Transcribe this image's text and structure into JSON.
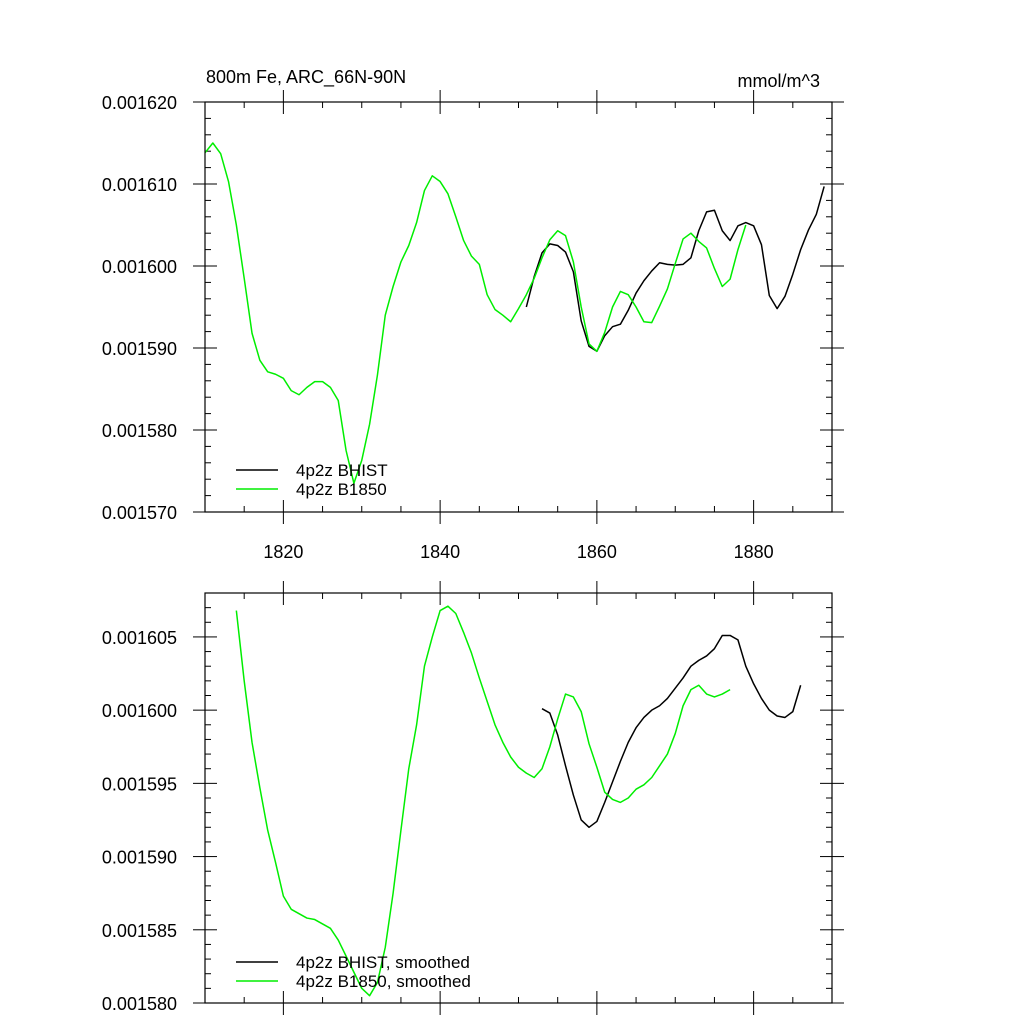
{
  "chart_data": [
    {
      "type": "line",
      "title": "800m Fe, ARC_66N-90N",
      "units": "mmol/m^3",
      "xlim": [
        1810,
        1890
      ],
      "ylim": [
        0.00157,
        0.00162
      ],
      "xticks": [
        {
          "value": 1820,
          "label": "1820"
        },
        {
          "value": 1840,
          "label": "1840"
        },
        {
          "value": 1860,
          "label": "1860"
        },
        {
          "value": 1880,
          "label": "1880"
        }
      ],
      "yticks": [
        {
          "value": 0.00157,
          "label": "0.001570"
        },
        {
          "value": 0.00158,
          "label": "0.001580"
        },
        {
          "value": 0.00159,
          "label": "0.001590"
        },
        {
          "value": 0.0016,
          "label": "0.001600"
        },
        {
          "value": 0.00161,
          "label": "0.001610"
        },
        {
          "value": 0.00162,
          "label": "0.001620"
        }
      ],
      "legend_position": "bottom-left",
      "series": [
        {
          "name": "4p2z BHIST",
          "color": "#000000",
          "x": [
            1851,
            1852,
            1853,
            1854,
            1855,
            1856,
            1857,
            1858,
            1859,
            1860,
            1861,
            1862,
            1863,
            1864,
            1865,
            1866,
            1867,
            1868,
            1869,
            1870,
            1871,
            1872,
            1873,
            1874,
            1875,
            1876,
            1877,
            1878,
            1879,
            1880,
            1881,
            1882,
            1883,
            1884,
            1885,
            1886,
            1887,
            1888,
            1889
          ],
          "y": [
            0.001595,
            0.0015987,
            0.0016016,
            0.0016027,
            0.0016025,
            0.0016017,
            0.0015993,
            0.0015933,
            0.0015902,
            0.0015896,
            0.0015915,
            0.0015926,
            0.0015929,
            0.0015946,
            0.0015967,
            0.0015982,
            0.0015994,
            0.0016004,
            0.0016002,
            0.0016001,
            0.0016002,
            0.001601,
            0.0016043,
            0.0016066,
            0.0016068,
            0.0016043,
            0.0016031,
            0.0016049,
            0.0016053,
            0.0016049,
            0.0016026,
            0.0015964,
            0.0015948,
            0.0015963,
            0.001599,
            0.001602,
            0.0016044,
            0.0016063,
            0.0016097
          ]
        },
        {
          "name": "4p2z B1850",
          "color": "#00ee00",
          "x": [
            1810,
            1811,
            1812,
            1813,
            1814,
            1815,
            1816,
            1817,
            1818,
            1819,
            1820,
            1821,
            1822,
            1823,
            1824,
            1825,
            1826,
            1827,
            1828,
            1829,
            1830,
            1831,
            1832,
            1833,
            1834,
            1835,
            1836,
            1837,
            1838,
            1839,
            1840,
            1841,
            1842,
            1843,
            1844,
            1845,
            1846,
            1847,
            1848,
            1849,
            1850,
            1851,
            1852,
            1853,
            1854,
            1855,
            1856,
            1857,
            1858,
            1859,
            1860,
            1861,
            1862,
            1863,
            1864,
            1865,
            1866,
            1867,
            1868,
            1869,
            1870,
            1871,
            1872,
            1873,
            1874,
            1875,
            1876,
            1877,
            1878,
            1879
          ],
          "y": [
            0.0016138,
            0.001615,
            0.0016137,
            0.0016103,
            0.001605,
            0.0015985,
            0.0015918,
            0.0015885,
            0.0015871,
            0.0015868,
            0.0015863,
            0.0015848,
            0.0015843,
            0.0015852,
            0.0015859,
            0.0015859,
            0.0015852,
            0.0015836,
            0.0015775,
            0.0015735,
            0.0015763,
            0.0015807,
            0.0015867,
            0.001594,
            0.0015975,
            0.0016005,
            0.0016025,
            0.0016053,
            0.0016092,
            0.001611,
            0.0016103,
            0.0016088,
            0.001606,
            0.0016031,
            0.0016012,
            0.0016002,
            0.0015965,
            0.0015947,
            0.001594,
            0.0015932,
            0.0015948,
            0.0015965,
            0.0015985,
            0.001601,
            0.0016032,
            0.0016043,
            0.0016037,
            0.0016005,
            0.001595,
            0.0015905,
            0.0015896,
            0.0015919,
            0.001595,
            0.0015969,
            0.0015965,
            0.001595,
            0.0015932,
            0.0015931,
            0.0015951,
            0.0015972,
            0.0016003,
            0.0016033,
            0.001604,
            0.001603,
            0.0016022,
            0.0015997,
            0.0015975,
            0.0015984,
            0.001602,
            0.001605
          ]
        }
      ]
    },
    {
      "type": "line",
      "xlim": [
        1810,
        1890
      ],
      "ylim": [
        0.00158,
        0.001608
      ],
      "xticks": [
        {
          "value": 1820,
          "label": ""
        },
        {
          "value": 1840,
          "label": ""
        },
        {
          "value": 1860,
          "label": ""
        },
        {
          "value": 1880,
          "label": ""
        }
      ],
      "yticks": [
        {
          "value": 0.00158,
          "label": "0.001580"
        },
        {
          "value": 0.001585,
          "label": "0.001585"
        },
        {
          "value": 0.00159,
          "label": "0.001590"
        },
        {
          "value": 0.001595,
          "label": "0.001595"
        },
        {
          "value": 0.0016,
          "label": "0.001600"
        },
        {
          "value": 0.001605,
          "label": "0.001605"
        }
      ],
      "legend_position": "bottom-left",
      "series": [
        {
          "name": "4p2z BHIST, smoothed",
          "color": "#000000",
          "x": [
            1853,
            1854,
            1855,
            1856,
            1857,
            1858,
            1859,
            1860,
            1861,
            1862,
            1863,
            1864,
            1865,
            1866,
            1867,
            1868,
            1869,
            1870,
            1871,
            1872,
            1873,
            1874,
            1875,
            1876,
            1877,
            1878,
            1879,
            1880,
            1881,
            1882,
            1883,
            1884,
            1885,
            1886
          ],
          "y": [
            0.0016001,
            0.0015998,
            0.0015983,
            0.0015962,
            0.0015942,
            0.0015925,
            0.001592,
            0.0015924,
            0.0015937,
            0.0015951,
            0.0015965,
            0.0015978,
            0.0015988,
            0.0015995,
            0.0016,
            0.0016003,
            0.0016008,
            0.0016015,
            0.0016022,
            0.001603,
            0.0016034,
            0.0016037,
            0.0016042,
            0.0016051,
            0.0016051,
            0.0016048,
            0.001603,
            0.0016018,
            0.0016008,
            0.0016,
            0.0015996,
            0.0015995,
            0.0015999,
            0.0016017
          ]
        },
        {
          "name": "4p2z B1850, smoothed",
          "color": "#00ee00",
          "x": [
            1814,
            1815,
            1816,
            1817,
            1818,
            1819,
            1820,
            1821,
            1822,
            1823,
            1824,
            1825,
            1826,
            1827,
            1828,
            1829,
            1830,
            1831,
            1832,
            1833,
            1834,
            1835,
            1836,
            1837,
            1838,
            1839,
            1840,
            1841,
            1842,
            1843,
            1844,
            1845,
            1846,
            1847,
            1848,
            1849,
            1850,
            1851,
            1852,
            1853,
            1854,
            1855,
            1856,
            1857,
            1858,
            1859,
            1860,
            1861,
            1862,
            1863,
            1864,
            1865,
            1866,
            1867,
            1868,
            1869,
            1870,
            1871,
            1872,
            1873,
            1874,
            1875,
            1876,
            1877
          ],
          "y": [
            0.0016068,
            0.001602,
            0.0015978,
            0.0015947,
            0.0015918,
            0.0015896,
            0.0015873,
            0.0015864,
            0.0015861,
            0.0015858,
            0.0015857,
            0.0015854,
            0.0015851,
            0.0015843,
            0.0015832,
            0.0015821,
            0.001581,
            0.0015805,
            0.0015814,
            0.0015838,
            0.0015875,
            0.0015918,
            0.001596,
            0.001599,
            0.001603,
            0.001605,
            0.0016068,
            0.0016071,
            0.0016066,
            0.0016053,
            0.0016039,
            0.0016022,
            0.0016006,
            0.001599,
            0.0015978,
            0.0015968,
            0.0015961,
            0.0015957,
            0.0015954,
            0.001596,
            0.0015975,
            0.0015994,
            0.0016011,
            0.0016009,
            0.0015999,
            0.0015977,
            0.0015961,
            0.0015944,
            0.0015939,
            0.0015937,
            0.001594,
            0.0015946,
            0.0015949,
            0.0015954,
            0.0015962,
            0.001597,
            0.0015984,
            0.0016003,
            0.0016014,
            0.0016017,
            0.0016011,
            0.0016009,
            0.0016011,
            0.0016014
          ]
        }
      ]
    }
  ]
}
